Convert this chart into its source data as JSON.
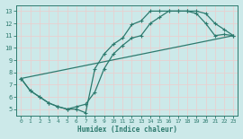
{
  "bg_color": "#cce9e9",
  "line_color": "#2d7a6e",
  "grid_color": "#d9eeee",
  "xlabel": "Humidex (Indice chaleur)",
  "xlim": [
    -0.5,
    23.5
  ],
  "ylim": [
    4.5,
    13.5
  ],
  "xticks": [
    0,
    1,
    2,
    3,
    4,
    5,
    6,
    7,
    8,
    9,
    10,
    11,
    12,
    13,
    14,
    15,
    16,
    17,
    18,
    19,
    20,
    21,
    22,
    23
  ],
  "yticks": [
    5,
    6,
    7,
    8,
    9,
    10,
    11,
    12,
    13
  ],
  "line1_x": [
    0,
    1,
    2,
    3,
    4,
    5,
    6,
    7,
    8,
    9,
    10,
    11,
    12,
    13,
    14,
    15,
    16,
    17,
    18,
    19,
    20,
    21,
    22,
    23
  ],
  "line1_y": [
    7.5,
    6.5,
    6.0,
    5.5,
    5.2,
    5.0,
    5.0,
    4.7,
    8.3,
    9.5,
    10.3,
    10.8,
    11.9,
    12.2,
    13.0,
    13.0,
    13.0,
    13.0,
    13.0,
    12.8,
    12.0,
    11.0,
    11.1,
    11.0
  ],
  "line2_x": [
    0,
    1,
    2,
    3,
    4,
    5,
    6,
    7,
    8,
    9,
    10,
    11,
    12,
    13,
    14,
    15,
    16,
    17,
    18,
    19,
    20,
    21,
    22,
    23
  ],
  "line2_y": [
    7.5,
    6.5,
    6.0,
    5.5,
    5.2,
    5.0,
    5.2,
    5.4,
    6.4,
    8.3,
    9.5,
    10.2,
    10.8,
    11.0,
    12.0,
    12.5,
    13.0,
    13.0,
    13.0,
    13.0,
    12.8,
    12.0,
    11.5,
    11.0
  ],
  "line3_x": [
    0,
    23
  ],
  "line3_y": [
    7.5,
    11.0
  ],
  "linewidth": 0.9,
  "marker_size": 2.0
}
